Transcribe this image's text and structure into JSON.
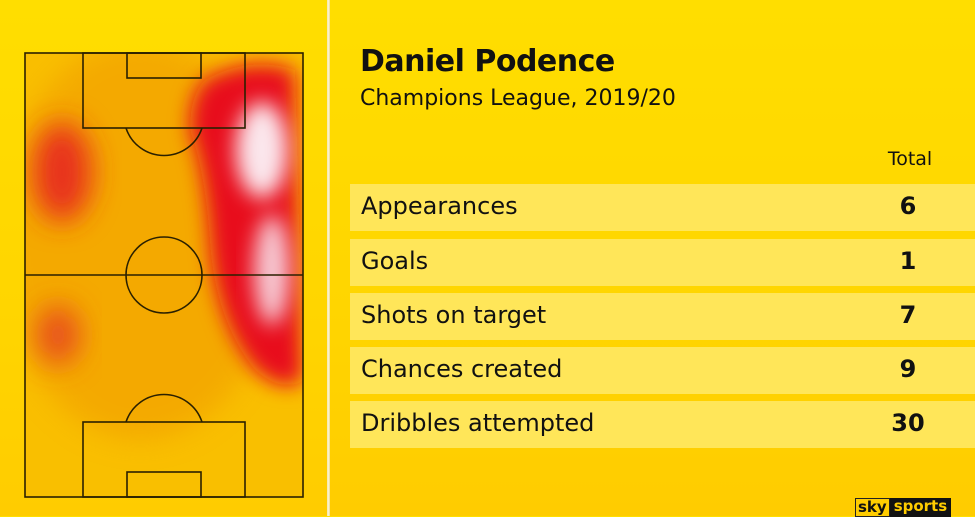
{
  "player": {
    "name": "Daniel Podence",
    "competition": "Champions League, 2019/20"
  },
  "table": {
    "column_header": "Total",
    "rows": [
      {
        "label": "Appearances",
        "value": "6"
      },
      {
        "label": "Goals",
        "value": "1"
      },
      {
        "label": "Shots on target",
        "value": "7"
      },
      {
        "label": "Chances created",
        "value": "9"
      },
      {
        "label": "Dribbles attempted",
        "value": "30"
      }
    ]
  },
  "heatmap": {
    "hot_zone": "right wing",
    "colors": {
      "low": "#f5a800",
      "mid": "#e8101e",
      "high": "#fbe6ec"
    }
  },
  "brand": {
    "logo_sky": "sky",
    "logo_sports": "sports"
  },
  "colors": {
    "background": "#ffd800",
    "row": "#ffe659"
  }
}
